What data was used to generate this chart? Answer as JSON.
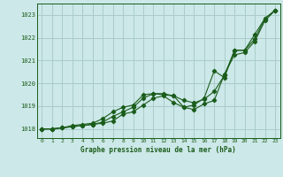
{
  "title": "Graphe pression niveau de la mer (hPa)",
  "bg_color": "#cce8e8",
  "grid_color": "#aacccc",
  "line_color": "#1a5c1a",
  "x_min": 0,
  "x_max": 23,
  "y_min": 1017.6,
  "y_max": 1023.5,
  "y_ticks": [
    1018,
    1019,
    1020,
    1021,
    1022,
    1023
  ],
  "x_ticks": [
    0,
    1,
    2,
    3,
    4,
    5,
    6,
    7,
    8,
    9,
    10,
    11,
    12,
    13,
    14,
    15,
    16,
    17,
    18,
    19,
    20,
    21,
    22,
    23
  ],
  "series1": [
    1018.0,
    1018.0,
    1018.05,
    1018.1,
    1018.15,
    1018.2,
    1018.25,
    1018.35,
    1018.65,
    1018.75,
    1019.05,
    1019.35,
    1019.45,
    1019.15,
    1018.95,
    1019.05,
    1019.35,
    1020.55,
    1020.25,
    1021.45,
    1021.45,
    1021.95,
    1022.85,
    1023.2
  ],
  "series2": [
    1018.0,
    1018.0,
    1018.05,
    1018.1,
    1018.15,
    1018.2,
    1018.3,
    1018.55,
    1018.75,
    1018.95,
    1019.35,
    1019.55,
    1019.55,
    1019.45,
    1019.25,
    1019.15,
    1019.3,
    1019.65,
    1020.35,
    1021.45,
    1021.45,
    1022.15,
    1022.85,
    1023.2
  ],
  "series3": [
    1018.0,
    1018.0,
    1018.05,
    1018.15,
    1018.2,
    1018.25,
    1018.45,
    1018.75,
    1018.95,
    1019.05,
    1019.5,
    1019.55,
    1019.5,
    1019.45,
    1018.95,
    1018.85,
    1019.1,
    1019.25,
    1020.4,
    1021.25,
    1021.35,
    1021.85,
    1022.75,
    1023.2
  ]
}
